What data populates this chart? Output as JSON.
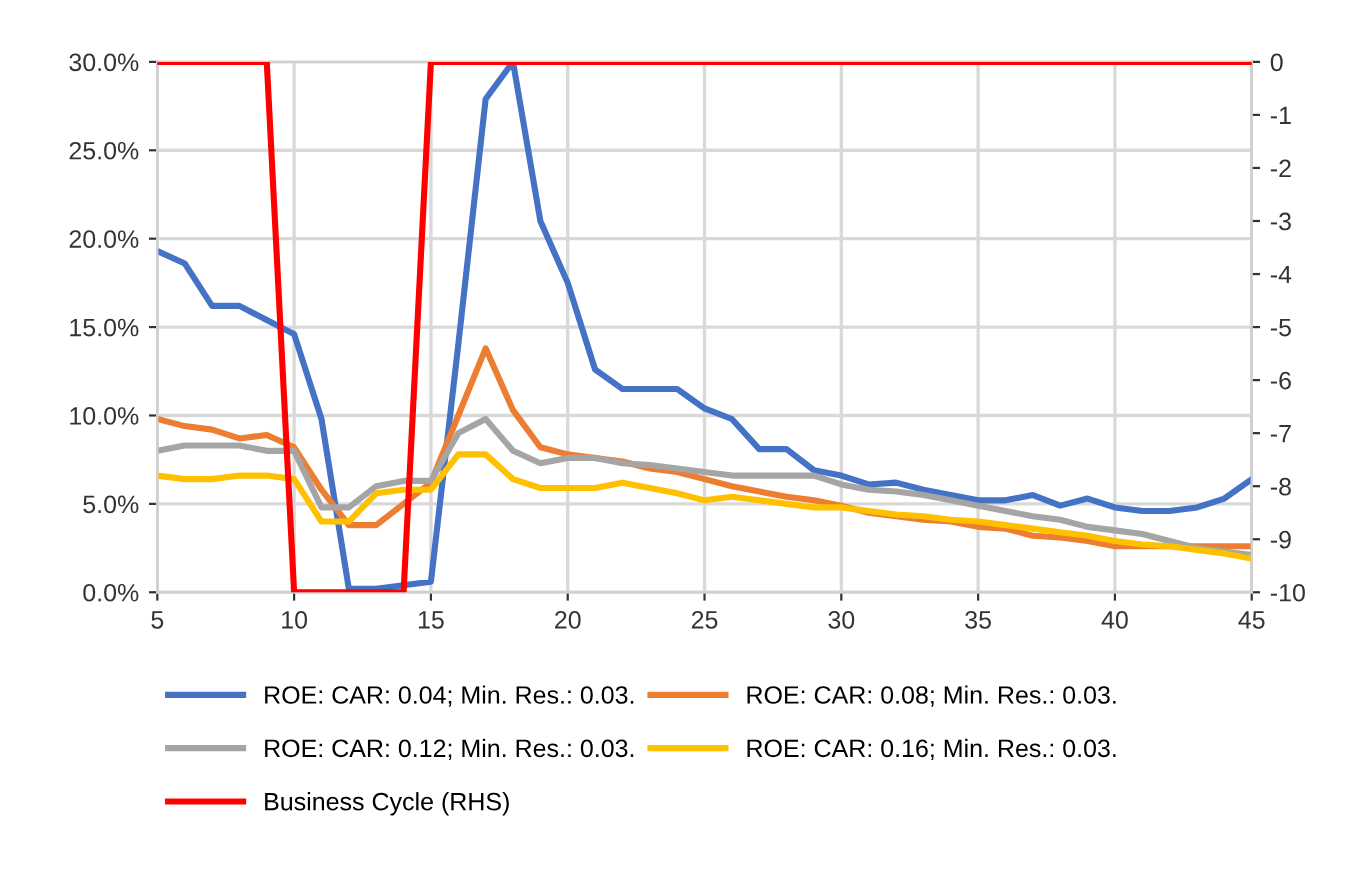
{
  "chart_data": {
    "type": "line",
    "x": [
      5,
      6,
      7,
      8,
      9,
      10,
      11,
      12,
      13,
      14,
      15,
      16,
      17,
      18,
      19,
      20,
      21,
      22,
      23,
      24,
      25,
      26,
      27,
      28,
      29,
      30,
      31,
      32,
      33,
      34,
      35,
      36,
      37,
      38,
      39,
      40,
      41,
      42,
      43,
      44,
      45
    ],
    "series": [
      {
        "name": "ROE: CAR: 0.04; Min. Res.: 0.03.",
        "color": "#4472c4",
        "values": [
          19.3,
          18.6,
          16.2,
          16.2,
          15.4,
          14.6,
          9.8,
          0.2,
          0.2,
          0.4,
          0.6,
          14,
          27.9,
          30,
          21,
          17.5,
          12.6,
          11.5,
          11.5,
          11.5,
          10.4,
          9.8,
          8.1,
          8.1,
          6.9,
          6.6,
          6.1,
          6.2,
          5.8,
          5.5,
          5.2,
          5.2,
          5.5,
          4.9,
          5.3,
          4.8,
          4.6,
          4.6,
          4.8,
          5.3,
          6.4
        ]
      },
      {
        "name": "ROE: CAR: 0.08; Min. Res.: 0.03.",
        "color": "#ed7d31",
        "values": [
          9.8,
          9.4,
          9.2,
          8.7,
          8.9,
          8.2,
          5.8,
          3.8,
          3.8,
          5,
          6.2,
          10,
          13.8,
          10.3,
          8.2,
          7.8,
          7.6,
          7.4,
          7,
          6.8,
          6.4,
          6,
          5.7,
          5.4,
          5.2,
          4.9,
          4.5,
          4.3,
          4.1,
          4,
          3.7,
          3.6,
          3.2,
          3.1,
          2.9,
          2.6,
          2.6,
          2.6,
          2.6,
          2.6,
          2.6
        ]
      },
      {
        "name": "ROE: CAR: 0.12; Min. Res.: 0.03.",
        "color": "#a5a5a5",
        "values": [
          8,
          8.3,
          8.3,
          8.3,
          8,
          8,
          4.8,
          4.8,
          6,
          6.3,
          6.3,
          9,
          9.8,
          8,
          7.3,
          7.6,
          7.6,
          7.3,
          7.2,
          7,
          6.8,
          6.6,
          6.6,
          6.6,
          6.6,
          6.1,
          5.8,
          5.7,
          5.5,
          5.2,
          4.9,
          4.6,
          4.3,
          4.1,
          3.7,
          3.5,
          3.3,
          2.9,
          2.5,
          2.3,
          2.1
        ]
      },
      {
        "name": "ROE: CAR: 0.16; Min. Res.: 0.03.",
        "color": "#ffc000",
        "values": [
          6.6,
          6.4,
          6.4,
          6.6,
          6.6,
          6.4,
          4,
          4,
          5.6,
          5.8,
          5.8,
          7.8,
          7.8,
          6.4,
          5.9,
          5.9,
          5.9,
          6.2,
          5.9,
          5.6,
          5.2,
          5.4,
          5.2,
          5,
          4.8,
          4.8,
          4.6,
          4.4,
          4.3,
          4.1,
          4,
          3.8,
          3.6,
          3.4,
          3.2,
          2.9,
          2.7,
          2.6,
          2.4,
          2.2,
          1.9
        ]
      },
      {
        "name": "Business Cycle (RHS)",
        "color": "#ff0000",
        "axis": "y2",
        "values": [
          0,
          0,
          0,
          0,
          0,
          -10,
          -10,
          -10,
          -10,
          -10,
          0,
          0,
          0,
          0,
          0,
          0,
          0,
          0,
          0,
          0,
          0,
          0,
          0,
          0,
          0,
          0,
          0,
          0,
          0,
          0,
          0,
          0,
          0,
          0,
          0,
          0,
          0,
          0,
          0,
          0,
          0
        ]
      }
    ],
    "xlim": [
      5,
      45
    ],
    "xticks": [
      5,
      10,
      15,
      20,
      25,
      30,
      35,
      40,
      45
    ],
    "ylim": [
      0,
      30
    ],
    "yticks": [
      {
        "value": 0,
        "label": "0.0%"
      },
      {
        "value": 5,
        "label": "5.0%"
      },
      {
        "value": 10,
        "label": "10.0%"
      },
      {
        "value": 15,
        "label": "15.0%"
      },
      {
        "value": 20,
        "label": "20.0%"
      },
      {
        "value": 25,
        "label": "25.0%"
      },
      {
        "value": 30,
        "label": "30.0%"
      }
    ],
    "y2lim": [
      -10,
      0
    ],
    "y2ticks": [
      -10,
      -9,
      -8,
      -7,
      -6,
      -5,
      -4,
      -3,
      -2,
      -1,
      0
    ],
    "grid": true,
    "legend": "bottom",
    "marker": "none",
    "line_style": "solid"
  }
}
